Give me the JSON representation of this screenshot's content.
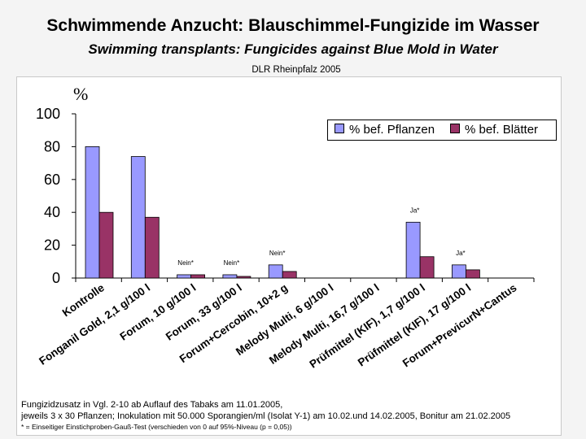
{
  "header": {
    "title": "Schwimmende Anzucht: Blauschimmel-Fungizide im Wasser",
    "subtitle": "Swimming transplants: Fungicides against Blue Mold in Water",
    "source": "DLR Rheinpfalz 2005"
  },
  "chart_data": {
    "type": "bar",
    "ylabel": "%",
    "ylim": [
      0,
      100
    ],
    "yticks": [
      0,
      20,
      40,
      60,
      80,
      100
    ],
    "grid": false,
    "legend_position": "top-right",
    "categories": [
      "Kontrolle",
      "Fonganil Gold, 2,1 g/100 l",
      "Forum, 10 g/100 l",
      "Forum, 33 g/100 l",
      "Forum+Cercobin, 10+2 g",
      "Melody Multi, 6 g/100 l",
      "Melody Multi, 16,7 g/100 l",
      "Prüfmittel (KIF), 1,7 g/100 l",
      "Prüfmittel (KIF), 17 g/100 l",
      "Forum+PrevicurN+Cantus"
    ],
    "series": [
      {
        "name": "% bef. Pflanzen",
        "color": "#9999ff",
        "values": [
          80,
          74,
          2,
          2,
          8,
          0,
          0,
          34,
          8,
          0
        ]
      },
      {
        "name": "% bef. Blätter",
        "color": "#993366",
        "values": [
          40,
          37,
          2,
          1,
          4,
          0,
          0,
          13,
          5,
          0
        ]
      }
    ],
    "annotations": [
      {
        "category": 2,
        "text": "Nein*"
      },
      {
        "category": 3,
        "text": "Nein*"
      },
      {
        "category": 4,
        "text": "Nein*"
      },
      {
        "category": 7,
        "text": "Ja*"
      },
      {
        "category": 8,
        "text": "Ja*"
      }
    ]
  },
  "notes": {
    "line1": "Fungizidzusatz in Vgl. 2-10 ab Auflauf des Tabaks am 11.01.2005,",
    "line2": "jeweils 3 x 30 Pflanzen; Inokulation mit 50.000 Sporangien/ml (Isolat Y-1) am 10.02.und 14.02.2005, Bonitur am 21.02.2005",
    "line3": "* = Einseitiger Einstichproben-Gauß-Test (verschieden von 0 auf 95%-Niveau (p = 0,05))"
  }
}
